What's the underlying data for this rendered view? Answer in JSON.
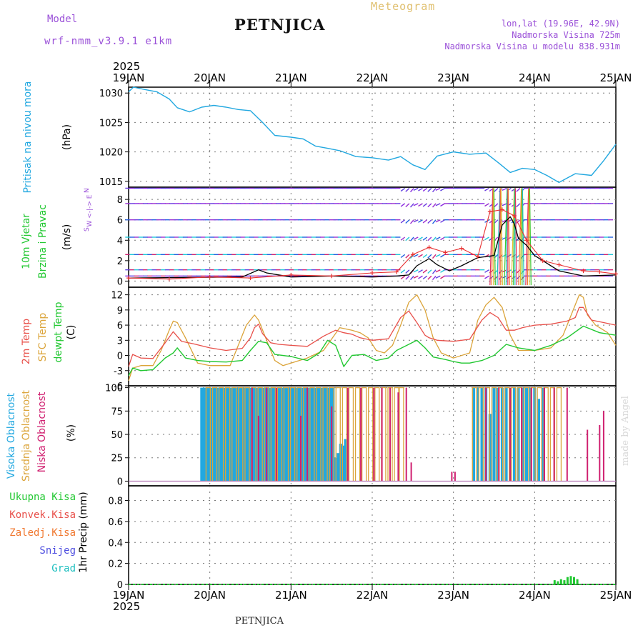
{
  "header": {
    "model_label": "Model",
    "model_name": "wrf-nmm_v3.9.1 e1km",
    "station": "PETNJICA",
    "product": "Meteogram",
    "location": "lon,lat (19.96E, 42.9N)",
    "elevation": "Nadmorska Visina 725m",
    "model_elevation": "Nadmorska Visina u modelu 838.931m",
    "footer_station": "PETNJICA",
    "signature": "made by Angel"
  },
  "colors": {
    "pressure": "#22a8e0",
    "temp2m": "#e8504a",
    "sfc_temp": "#dba43a",
    "dewpt": "#22c832",
    "high_cloud": "#22a8e0",
    "mid_cloud": "#dba43a",
    "low_cloud": "#d02070",
    "total_precip": "#22c832",
    "conv_precip": "#e8504a",
    "frozen_precip": "#f07830",
    "snow": "#5050e0",
    "hail": "#20c0c0",
    "model_title": "#9a50d8",
    "product_title": "#e0c070",
    "wind_speed": "#000000",
    "gust": "#e83030"
  },
  "chart_data": [
    {
      "type": "line",
      "panel": "pressure",
      "ylabel_side": "Pritisak na nivou mora",
      "unit": "(hPa)",
      "ylim": [
        1014,
        1031
      ],
      "yticks": [
        "1015",
        "1020",
        "1025",
        "1030"
      ],
      "x_top_year": "2025",
      "x_ticks_top": [
        "19JAN",
        "20JAN",
        "21JAN",
        "22JAN",
        "23JAN",
        "24JAN",
        "25JAN"
      ],
      "series": [
        {
          "x": [
            0,
            0.06,
            0.2,
            0.35,
            0.5,
            0.6,
            0.75,
            0.9,
            1.05,
            1.2,
            1.35,
            1.5,
            1.65,
            1.8,
            2.0,
            2.15,
            2.3,
            2.45,
            2.6,
            2.8,
            3.0,
            3.2,
            3.35,
            3.5,
            3.65,
            3.8,
            4.0,
            4.2,
            4.4,
            4.55,
            4.7,
            4.85,
            5.0,
            5.15,
            5.3,
            5.5,
            5.7,
            5.85,
            6.0
          ],
          "values": [
            1030.2,
            1031.0,
            1030.6,
            1030.2,
            1029.0,
            1027.5,
            1026.8,
            1027.6,
            1027.9,
            1027.6,
            1027.2,
            1027.0,
            1025.0,
            1022.8,
            1022.5,
            1022.2,
            1021.0,
            1020.6,
            1020.2,
            1019.2,
            1019.0,
            1018.6,
            1019.2,
            1017.8,
            1017.0,
            1019.3,
            1020.0,
            1019.6,
            1019.8,
            1018.2,
            1016.5,
            1017.2,
            1017.0,
            1016.0,
            1014.8,
            1016.3,
            1016.0,
            1018.5,
            1021.3
          ]
        }
      ]
    },
    {
      "type": "line",
      "panel": "wind",
      "ylabel_side": [
        "10m Vjetar",
        "Brzina i Pravac"
      ],
      "unit": "(m/s)",
      "compass": [
        "N",
        "W <-|-> E",
        "S"
      ],
      "ylim": [
        -0.6,
        9.2
      ],
      "yticks": [
        "0",
        "2",
        "4",
        "6",
        "8"
      ],
      "barb_rows": [
        0.5,
        1.1,
        2.6,
        4.3,
        6.0,
        7.6,
        9.1
      ],
      "series": [
        {
          "name": "",
          "x": [
            0,
            1.4,
            1.6,
            1.7,
            2.0,
            2.5,
            3.0,
            3.3,
            3.45,
            3.55,
            3.7,
            3.8,
            3.95,
            4.1,
            4.3,
            4.5,
            4.6,
            4.7,
            4.75,
            4.8,
            4.9,
            5.0,
            5.3,
            5.6,
            6.0
          ],
          "values": [
            0.3,
            0.4,
            1.1,
            0.8,
            0.4,
            0.5,
            0.4,
            0.5,
            0.6,
            1.5,
            2.2,
            1.6,
            1.0,
            1.5,
            2.3,
            2.5,
            5.5,
            6.3,
            5.6,
            4.2,
            3.5,
            2.5,
            1.0,
            0.5,
            0.6
          ]
        },
        {
          "name": "",
          "x": [
            0,
            0.5,
            1.0,
            1.5,
            2.0,
            2.5,
            3.0,
            3.3,
            3.5,
            3.7,
            3.9,
            4.1,
            4.3,
            4.45,
            4.6,
            4.75,
            4.9,
            5.1,
            5.3,
            5.6,
            5.8,
            6.0
          ],
          "values": [
            0.3,
            0.2,
            0.4,
            0.3,
            0.6,
            0.5,
            0.8,
            0.9,
            2.6,
            3.3,
            2.8,
            3.2,
            2.4,
            6.8,
            7.0,
            6.4,
            4.0,
            2.0,
            1.6,
            1.0,
            0.9,
            0.7
          ]
        }
      ]
    },
    {
      "type": "line",
      "panel": "temperature",
      "ylabel_side": [
        "2m Temp",
        "SFC Temp",
        "dewpt Temp"
      ],
      "unit": "(C)",
      "ylim": [
        -6,
        13.5
      ],
      "yticks": [
        "-6",
        "-3",
        "0",
        "3",
        "6",
        "9",
        "12"
      ],
      "series": [
        {
          "name": "2m Temp",
          "x": [
            0,
            0.05,
            0.15,
            0.3,
            0.45,
            0.55,
            0.65,
            0.8,
            1.0,
            1.2,
            1.4,
            1.5,
            1.55,
            1.6,
            1.65,
            1.75,
            1.85,
            2.0,
            2.2,
            2.4,
            2.55,
            2.65,
            2.75,
            2.85,
            3.0,
            3.2,
            3.35,
            3.45,
            3.55,
            3.65,
            3.7,
            3.8,
            4.0,
            4.2,
            4.35,
            4.45,
            4.55,
            4.65,
            4.75,
            4.85,
            5.0,
            5.2,
            5.4,
            5.5,
            5.55,
            5.6,
            5.7,
            5.85,
            6.0
          ],
          "values": [
            -2.2,
            0.2,
            -0.5,
            -0.6,
            2.5,
            4.7,
            2.8,
            2.3,
            1.5,
            1.0,
            1.4,
            3.5,
            5.5,
            6.2,
            4.3,
            2.5,
            2.2,
            2.0,
            1.8,
            3.8,
            5.0,
            4.5,
            4.2,
            3.5,
            3.0,
            3.3,
            7.5,
            8.8,
            6.5,
            4.0,
            3.5,
            3.0,
            2.8,
            3.2,
            7.0,
            8.5,
            7.5,
            5.0,
            5.0,
            5.5,
            6.0,
            6.2,
            6.8,
            7.5,
            9.5,
            9.5,
            7.0,
            6.5,
            6.0
          ]
        },
        {
          "name": "SFC Temp",
          "x": [
            0,
            0.05,
            0.15,
            0.3,
            0.4,
            0.5,
            0.55,
            0.6,
            0.7,
            0.85,
            1.0,
            1.25,
            1.35,
            1.45,
            1.55,
            1.6,
            1.7,
            1.8,
            1.9,
            2.0,
            2.2,
            2.4,
            2.6,
            2.75,
            2.85,
            2.95,
            3.05,
            3.15,
            3.25,
            3.35,
            3.45,
            3.55,
            3.65,
            3.75,
            3.85,
            4.0,
            4.2,
            4.3,
            4.4,
            4.5,
            4.6,
            4.7,
            4.8,
            5.0,
            5.2,
            5.35,
            5.45,
            5.55,
            5.6,
            5.65,
            5.75,
            5.9,
            6.0
          ],
          "values": [
            -5.0,
            -2.5,
            -2.0,
            -2.0,
            1.0,
            5.0,
            6.8,
            6.5,
            3.5,
            -1.5,
            -2.0,
            -2.0,
            2.0,
            6.0,
            8.0,
            7.0,
            3.0,
            -1.0,
            -2.0,
            -1.5,
            -0.5,
            1.0,
            5.5,
            5.0,
            4.5,
            3.5,
            1.0,
            0.5,
            2.0,
            6.0,
            10.5,
            12.0,
            9.0,
            3.5,
            0.5,
            -0.5,
            0.5,
            7.0,
            10.0,
            11.5,
            9.5,
            4.0,
            1.0,
            1.0,
            1.5,
            4.0,
            8.0,
            12.0,
            11.5,
            8.0,
            6.0,
            4.5,
            2.0
          ]
        },
        {
          "name": "dewpt Temp",
          "x": [
            0,
            0.05,
            0.15,
            0.3,
            0.45,
            0.55,
            0.6,
            0.7,
            0.85,
            1.0,
            1.2,
            1.4,
            1.5,
            1.6,
            1.7,
            1.8,
            2.0,
            2.2,
            2.35,
            2.45,
            2.55,
            2.65,
            2.75,
            2.9,
            3.05,
            3.2,
            3.3,
            3.45,
            3.55,
            3.65,
            3.75,
            3.9,
            4.0,
            4.1,
            4.2,
            4.35,
            4.5,
            4.65,
            4.8,
            5.0,
            5.2,
            5.4,
            5.6,
            5.8,
            6.0
          ],
          "values": [
            -4.0,
            -2.5,
            -3.0,
            -2.8,
            -0.5,
            0.5,
            1.5,
            -0.5,
            -1.0,
            -1.2,
            -1.3,
            -1.0,
            1.0,
            2.8,
            2.5,
            0.2,
            -0.2,
            -1.0,
            0.5,
            3.0,
            2.0,
            -2.2,
            0.0,
            0.2,
            -1.0,
            -0.5,
            1.0,
            2.2,
            3.0,
            1.5,
            -0.3,
            -0.8,
            -1.2,
            -1.5,
            -1.5,
            -1.0,
            0.0,
            2.2,
            1.5,
            1.0,
            2.0,
            3.5,
            5.8,
            4.5,
            4.0
          ]
        }
      ]
    },
    {
      "type": "bar",
      "panel": "cloud_cover",
      "ylabel_side": [
        "Visoka Oblacnost",
        "Srednja Oblacnost",
        "Niska Oblacnost"
      ],
      "unit": "(%)",
      "ylim": [
        -5,
        102
      ],
      "yticks": [
        "0",
        "25",
        "50",
        "75",
        "100"
      ],
      "series": [
        {
          "name": "Visoka Oblacnost",
          "x": [
            0.9,
            0.93,
            0.96,
            0.99,
            1.02,
            1.05,
            1.08,
            1.11,
            1.14,
            1.17,
            1.2,
            1.23,
            1.26,
            1.29,
            1.32,
            1.35,
            1.38,
            1.41,
            1.44,
            1.47,
            1.5,
            1.53,
            1.56,
            1.59,
            1.62,
            1.65,
            1.68,
            1.71,
            1.74,
            1.77,
            1.8,
            1.83,
            1.86,
            1.89,
            1.92,
            1.95,
            1.98,
            2.01,
            2.04,
            2.07,
            2.1,
            2.13,
            2.16,
            2.19,
            2.22,
            2.25,
            2.28,
            2.31,
            2.34,
            2.37,
            2.4,
            2.43,
            2.46,
            2.49,
            2.52,
            2.55,
            2.58,
            2.61,
            2.64,
            2.67,
            4.25,
            4.3,
            4.35,
            4.4,
            4.45,
            4.5,
            4.55,
            4.6,
            4.65,
            4.7,
            4.75,
            4.8,
            4.85,
            4.9,
            4.95,
            5.0,
            5.05,
            5.1
          ],
          "values": [
            100,
            100,
            100,
            100,
            100,
            100,
            100,
            100,
            100,
            100,
            100,
            100,
            100,
            100,
            100,
            100,
            100,
            100,
            100,
            100,
            100,
            100,
            100,
            100,
            100,
            100,
            100,
            100,
            100,
            100,
            100,
            100,
            100,
            100,
            100,
            100,
            100,
            100,
            100,
            100,
            100,
            100,
            100,
            100,
            100,
            100,
            100,
            100,
            100,
            100,
            100,
            100,
            100,
            100,
            100,
            25,
            30,
            40,
            38,
            45,
            100,
            100,
            100,
            100,
            72,
            100,
            100,
            100,
            100,
            100,
            100,
            100,
            100,
            100,
            100,
            100,
            88,
            100
          ]
        },
        {
          "name": "Srednja Oblacnost",
          "x": [
            0.98,
            1.06,
            1.14,
            1.22,
            1.3,
            1.38,
            1.46,
            1.54,
            1.62,
            1.7,
            1.78,
            1.86,
            1.94,
            2.02,
            2.1,
            2.18,
            2.26,
            2.34,
            2.42,
            2.5,
            2.58,
            2.66,
            2.74,
            2.82,
            2.9,
            2.98,
            3.06,
            3.14,
            3.22,
            3.3,
            3.36,
            4.26,
            4.34,
            4.42,
            4.5,
            4.58,
            4.66,
            4.74,
            4.82,
            4.9,
            4.98,
            5.06,
            5.14,
            5.22,
            5.3
          ],
          "values": [
            100,
            100,
            100,
            100,
            100,
            100,
            100,
            100,
            100,
            100,
            100,
            100,
            100,
            100,
            100,
            100,
            100,
            100,
            100,
            100,
            100,
            100,
            100,
            100,
            100,
            100,
            100,
            100,
            100,
            100,
            100,
            100,
            100,
            100,
            100,
            100,
            100,
            100,
            100,
            100,
            100,
            100,
            100,
            100,
            100
          ]
        },
        {
          "name": "Niska Oblacnost",
          "x": [
            1.52,
            1.6,
            1.7,
            1.82,
            2.12,
            2.2,
            2.5,
            2.7,
            2.86,
            3.02,
            3.12,
            3.22,
            3.32,
            3.42,
            3.48,
            3.98,
            4.02,
            4.4,
            4.56,
            4.7,
            4.84,
            4.96,
            5.12,
            5.24,
            5.4,
            5.65,
            5.8,
            5.85
          ],
          "values": [
            100,
            70,
            100,
            100,
            70,
            100,
            80,
            100,
            100,
            100,
            100,
            100,
            95,
            100,
            20,
            10,
            10,
            100,
            100,
            100,
            100,
            100,
            100,
            100,
            100,
            55,
            60,
            75
          ]
        }
      ]
    },
    {
      "type": "bar",
      "panel": "precipitation",
      "ylabel_side": "1hr Precip (mm)",
      "legend": [
        "Ukupna Kisa",
        "Konvek.Kisa",
        "Zaledj.Kisa",
        "Snijeg",
        "Grad"
      ],
      "ylim": [
        0,
        0.94
      ],
      "yticks": [
        "0",
        "0.2",
        "0.4",
        "0.6",
        "0.8"
      ],
      "x_bottom_year": "2025",
      "x_ticks_bottom": [
        "19JAN",
        "20JAN",
        "21JAN",
        "22JAN",
        "23JAN",
        "24JAN",
        "25JAN"
      ],
      "series": [
        {
          "name": "Ukupna Kisa",
          "x": [
            5.25,
            5.29,
            5.33,
            5.37,
            5.41,
            5.45,
            5.49,
            5.53
          ],
          "values": [
            0.04,
            0.03,
            0.05,
            0.04,
            0.07,
            0.08,
            0.07,
            0.05
          ]
        }
      ]
    }
  ]
}
